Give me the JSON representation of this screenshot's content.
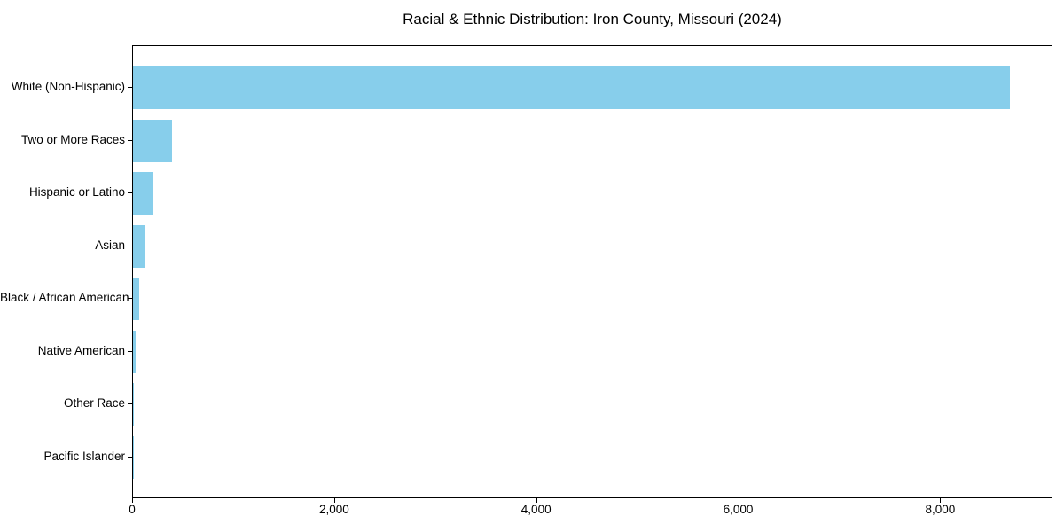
{
  "chart_data": {
    "type": "bar",
    "orientation": "horizontal",
    "title": "Racial & Ethnic Distribution: Iron County, Missouri (2024)",
    "categories": [
      "White (Non-Hispanic)",
      "Two or More Races",
      "Hispanic or Latino",
      "Asian",
      "Black / African American",
      "Native American",
      "Other Race",
      "Pacific Islander"
    ],
    "values": [
      8677,
      390,
      205,
      110,
      58,
      25,
      12,
      2
    ],
    "bar_color": "#87CEEB",
    "text_color": "#000000",
    "xlabel": "",
    "ylabel": "",
    "xlim": [
      0,
      9111
    ],
    "x_ticks": [
      0,
      2000,
      4000,
      6000,
      8000
    ],
    "x_tick_labels": [
      "0",
      "2,000",
      "4,000",
      "6,000",
      "8,000"
    ],
    "grid": false,
    "legend": "none"
  }
}
